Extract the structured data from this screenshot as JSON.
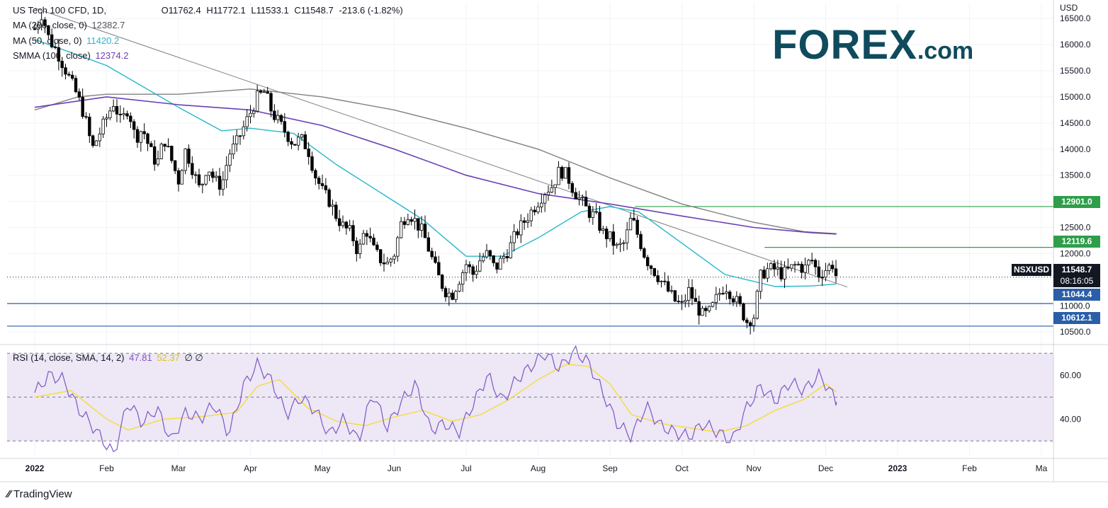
{
  "header": {
    "symbol": "US Tech 100 CFD, 1D,",
    "open": "O11762.4",
    "high": "H11772.1",
    "low": "L11533.1",
    "close": "C11548.7",
    "change": "-213.6 (-1.82%)"
  },
  "indicators": [
    {
      "label": "MA (200, close, 0)",
      "value": "12382.7",
      "color": "#808080"
    },
    {
      "label": "MA (50, close, 0)",
      "value": "11420.2",
      "color": "#26b8c8"
    },
    {
      "label": "SMMA (100, close)",
      "value": "12374.2",
      "color": "#6a3fb5"
    }
  ],
  "rsi_header": {
    "label": "RSI (14, close, SMA, 14, 2)",
    "rsi": "47.81",
    "sma": "52.37",
    "extra": "∅ ∅"
  },
  "currency": "USD",
  "logo": {
    "brand": "FOREX",
    "suffix": ".com"
  },
  "footer": {
    "brand": "TradingView",
    "icon": "tradingview-logo-icon"
  },
  "price_labels": {
    "symbol": "NSXUSD",
    "last": "11548.7",
    "countdown": "08:16:05",
    "resistance_1": "12901.0",
    "resistance_2": "12119.6",
    "support_1": "11044.4",
    "support_2": "10612.1"
  },
  "colors": {
    "up": "#ffffff",
    "down": "#000000",
    "ma200": "#808080",
    "ma50": "#26b8c8",
    "smma": "#6a3fb5",
    "resistance": "#2e9e4a",
    "support": "#2a5ea8",
    "rsi": "#7e57c2",
    "rsi_sma": "#f5dc2e",
    "rsi_band": "#ede7f6",
    "badge": "#131722"
  },
  "chart_data": [
    {
      "type": "candlestick",
      "title": "US Tech 100 CFD, 1D",
      "ylabel": "USD",
      "ylim": [
        10300,
        16800
      ],
      "y_ticks": [
        "10500.0",
        "11000.0",
        "11500.0",
        "12000.0",
        "12500.0",
        "13000.0",
        "13500.0",
        "14000.0",
        "14500.0",
        "15000.0",
        "15500.0",
        "16000.0",
        "16500.0"
      ],
      "x_labels": [
        "2022",
        "Feb",
        "Mar",
        "Apr",
        "May",
        "Jun",
        "Jul",
        "Aug",
        "Sep",
        "Oct",
        "Nov",
        "Dec",
        "2023",
        "Feb",
        "Ma"
      ],
      "x_months_idx": [
        0,
        1,
        2,
        3,
        4,
        5,
        6,
        7,
        8,
        9,
        10,
        11,
        12,
        13,
        14
      ],
      "close_path": [
        [
          0,
          16300
        ],
        [
          0.1,
          16600
        ],
        [
          0.2,
          16100
        ],
        [
          0.3,
          15900
        ],
        [
          0.4,
          15600
        ],
        [
          0.5,
          15300
        ],
        [
          0.6,
          15000
        ],
        [
          0.7,
          14600
        ],
        [
          0.8,
          14000
        ],
        [
          0.9,
          14300
        ],
        [
          1.0,
          14600
        ],
        [
          1.1,
          14900
        ],
        [
          1.2,
          14500
        ],
        [
          1.3,
          14800
        ],
        [
          1.4,
          14200
        ],
        [
          1.5,
          14400
        ],
        [
          1.6,
          14000
        ],
        [
          1.7,
          13700
        ],
        [
          1.8,
          14200
        ],
        [
          1.9,
          13800
        ],
        [
          2.0,
          13400
        ],
        [
          2.1,
          14000
        ],
        [
          2.2,
          13600
        ],
        [
          2.3,
          13200
        ],
        [
          2.4,
          13700
        ],
        [
          2.5,
          13400
        ],
        [
          2.6,
          13300
        ],
        [
          2.7,
          13900
        ],
        [
          2.8,
          14100
        ],
        [
          2.9,
          14400
        ],
        [
          3.0,
          14700
        ],
        [
          3.1,
          15000
        ],
        [
          3.2,
          15100
        ],
        [
          3.3,
          14700
        ],
        [
          3.4,
          14500
        ],
        [
          3.5,
          14300
        ],
        [
          3.6,
          14100
        ],
        [
          3.7,
          14200
        ],
        [
          3.8,
          14000
        ],
        [
          3.9,
          13500
        ],
        [
          4.0,
          13200
        ],
        [
          4.1,
          13000
        ],
        [
          4.2,
          12700
        ],
        [
          4.3,
          12500
        ],
        [
          4.4,
          12400
        ],
        [
          4.5,
          12000
        ],
        [
          4.6,
          12500
        ],
        [
          4.7,
          12100
        ],
        [
          4.8,
          11900
        ],
        [
          4.9,
          11800
        ],
        [
          5.0,
          12000
        ],
        [
          5.1,
          12600
        ],
        [
          5.2,
          12800
        ],
        [
          5.3,
          12600
        ],
        [
          5.4,
          12400
        ],
        [
          5.5,
          12000
        ],
        [
          5.6,
          11600
        ],
        [
          5.7,
          11300
        ],
        [
          5.8,
          11200
        ],
        [
          5.9,
          11500
        ],
        [
          6.0,
          11800
        ],
        [
          6.1,
          11600
        ],
        [
          6.2,
          11900
        ],
        [
          6.3,
          12000
        ],
        [
          6.4,
          11700
        ],
        [
          6.5,
          11900
        ],
        [
          6.6,
          12100
        ],
        [
          6.7,
          12400
        ],
        [
          6.8,
          12600
        ],
        [
          6.9,
          12800
        ],
        [
          7.0,
          13000
        ],
        [
          7.1,
          13200
        ],
        [
          7.2,
          13300
        ],
        [
          7.3,
          13600
        ],
        [
          7.4,
          13500
        ],
        [
          7.5,
          13200
        ],
        [
          7.6,
          13000
        ],
        [
          7.7,
          12800
        ],
        [
          7.8,
          12700
        ],
        [
          7.9,
          12400
        ],
        [
          8.0,
          12300
        ],
        [
          8.1,
          12100
        ],
        [
          8.2,
          12200
        ],
        [
          8.3,
          12700
        ],
        [
          8.4,
          12300
        ],
        [
          8.5,
          11900
        ],
        [
          8.6,
          11700
        ],
        [
          8.7,
          11500
        ],
        [
          8.8,
          11300
        ],
        [
          8.9,
          11100
        ],
        [
          9.0,
          11000
        ],
        [
          9.1,
          11300
        ],
        [
          9.2,
          11000
        ],
        [
          9.3,
          10800
        ],
        [
          9.4,
          10900
        ],
        [
          9.5,
          11200
        ],
        [
          9.6,
          11400
        ],
        [
          9.7,
          11200
        ],
        [
          9.8,
          11000
        ],
        [
          9.9,
          10700
        ],
        [
          10.0,
          10800
        ],
        [
          10.1,
          11600
        ],
        [
          10.2,
          11700
        ],
        [
          10.3,
          11700
        ],
        [
          10.4,
          11600
        ],
        [
          10.5,
          11700
        ],
        [
          10.6,
          11800
        ],
        [
          10.7,
          11700
        ],
        [
          10.8,
          11900
        ],
        [
          10.9,
          11600
        ],
        [
          11.0,
          11700
        ],
        [
          11.1,
          11800
        ],
        [
          11.15,
          11549
        ]
      ],
      "horizontal_levels": [
        12901.0,
        12119.6,
        11044.4,
        10612.1
      ],
      "ma200_path": [
        [
          0,
          14750
        ],
        [
          0.6,
          15000
        ],
        [
          1.0,
          15050
        ],
        [
          2.0,
          15050
        ],
        [
          3.0,
          15150
        ],
        [
          4.0,
          15000
        ],
        [
          5.0,
          14750
        ],
        [
          6.0,
          14400
        ],
        [
          7.0,
          14000
        ],
        [
          8.0,
          13450
        ],
        [
          9.0,
          12950
        ],
        [
          10.0,
          12600
        ],
        [
          10.7,
          12420
        ],
        [
          11.15,
          12383
        ]
      ],
      "ma50_path": [
        [
          0,
          16100
        ],
        [
          1.0,
          15600
        ],
        [
          2.0,
          14800
        ],
        [
          2.6,
          14350
        ],
        [
          3.0,
          14400
        ],
        [
          3.6,
          14300
        ],
        [
          4.2,
          13700
        ],
        [
          5.0,
          13000
        ],
        [
          5.4,
          12650
        ],
        [
          6.0,
          11950
        ],
        [
          6.5,
          11950
        ],
        [
          7.0,
          12300
        ],
        [
          7.6,
          12800
        ],
        [
          8.0,
          12900
        ],
        [
          8.4,
          12800
        ],
        [
          9.0,
          12200
        ],
        [
          9.6,
          11600
        ],
        [
          10.3,
          11370
        ],
        [
          10.8,
          11380
        ],
        [
          11.15,
          11420
        ]
      ],
      "smma_path": [
        [
          0,
          14800
        ],
        [
          1.0,
          15000
        ],
        [
          2.0,
          14850
        ],
        [
          3.0,
          14750
        ],
        [
          4.0,
          14450
        ],
        [
          5.0,
          14000
        ],
        [
          6.0,
          13500
        ],
        [
          7.0,
          13150
        ],
        [
          8.0,
          12950
        ],
        [
          9.0,
          12720
        ],
        [
          10.0,
          12500
        ],
        [
          10.8,
          12400
        ],
        [
          11.15,
          12374
        ]
      ],
      "trendline": [
        [
          0,
          16700
        ],
        [
          11.3,
          11360
        ]
      ],
      "last_price": 11548.7
    },
    {
      "type": "line",
      "title": "RSI (14, close, SMA, 14, 2)",
      "ylim": [
        23,
        73
      ],
      "y_ticks": [
        "40.00",
        "60.00"
      ],
      "band": [
        30,
        70
      ],
      "midline": 50,
      "series": [
        {
          "name": "RSI",
          "values": [
            [
              0,
              52
            ],
            [
              0.2,
              60
            ],
            [
              0.4,
              58
            ],
            [
              0.6,
              45
            ],
            [
              0.8,
              37
            ],
            [
              1.0,
              28
            ],
            [
              1.1,
              24
            ],
            [
              1.3,
              48
            ],
            [
              1.5,
              38
            ],
            [
              1.7,
              45
            ],
            [
              1.9,
              30
            ],
            [
              2.1,
              43
            ],
            [
              2.3,
              40
            ],
            [
              2.5,
              47
            ],
            [
              2.7,
              33
            ],
            [
              2.9,
              55
            ],
            [
              3.1,
              65
            ],
            [
              3.3,
              57
            ],
            [
              3.5,
              42
            ],
            [
              3.7,
              50
            ],
            [
              3.9,
              44
            ],
            [
              4.1,
              33
            ],
            [
              4.3,
              40
            ],
            [
              4.5,
              30
            ],
            [
              4.7,
              52
            ],
            [
              4.9,
              36
            ],
            [
              5.1,
              48
            ],
            [
              5.3,
              56
            ],
            [
              5.5,
              35
            ],
            [
              5.7,
              38
            ],
            [
              5.9,
              34
            ],
            [
              6.1,
              47
            ],
            [
              6.3,
              60
            ],
            [
              6.5,
              48
            ],
            [
              6.7,
              58
            ],
            [
              6.9,
              64
            ],
            [
              7.1,
              70
            ],
            [
              7.3,
              63
            ],
            [
              7.5,
              71
            ],
            [
              7.7,
              66
            ],
            [
              7.9,
              52
            ],
            [
              8.1,
              38
            ],
            [
              8.3,
              32
            ],
            [
              8.5,
              46
            ],
            [
              8.7,
              37
            ],
            [
              8.9,
              34
            ],
            [
              9.1,
              32
            ],
            [
              9.3,
              38
            ],
            [
              9.5,
              34
            ],
            [
              9.7,
              30
            ],
            [
              9.9,
              45
            ],
            [
              10.1,
              55
            ],
            [
              10.3,
              48
            ],
            [
              10.5,
              57
            ],
            [
              10.7,
              53
            ],
            [
              10.9,
              60
            ],
            [
              11.0,
              56
            ],
            [
              11.15,
              47.81
            ]
          ]
        },
        {
          "name": "SMA",
          "values": [
            [
              0,
              50
            ],
            [
              0.5,
              53
            ],
            [
              1.0,
              40
            ],
            [
              1.3,
              35
            ],
            [
              1.8,
              40
            ],
            [
              2.3,
              41
            ],
            [
              2.8,
              43
            ],
            [
              3.1,
              55
            ],
            [
              3.4,
              58
            ],
            [
              3.8,
              45
            ],
            [
              4.2,
              39
            ],
            [
              4.6,
              37
            ],
            [
              5.0,
              41
            ],
            [
              5.4,
              44
            ],
            [
              5.8,
              39
            ],
            [
              6.2,
              42
            ],
            [
              6.6,
              49
            ],
            [
              7.0,
              58
            ],
            [
              7.4,
              65
            ],
            [
              7.7,
              64
            ],
            [
              8.0,
              56
            ],
            [
              8.3,
              42
            ],
            [
              8.7,
              38
            ],
            [
              9.1,
              36
            ],
            [
              9.5,
              34
            ],
            [
              9.9,
              37
            ],
            [
              10.3,
              44
            ],
            [
              10.7,
              49
            ],
            [
              11.0,
              56
            ],
            [
              11.15,
              52.37
            ]
          ]
        }
      ]
    }
  ]
}
